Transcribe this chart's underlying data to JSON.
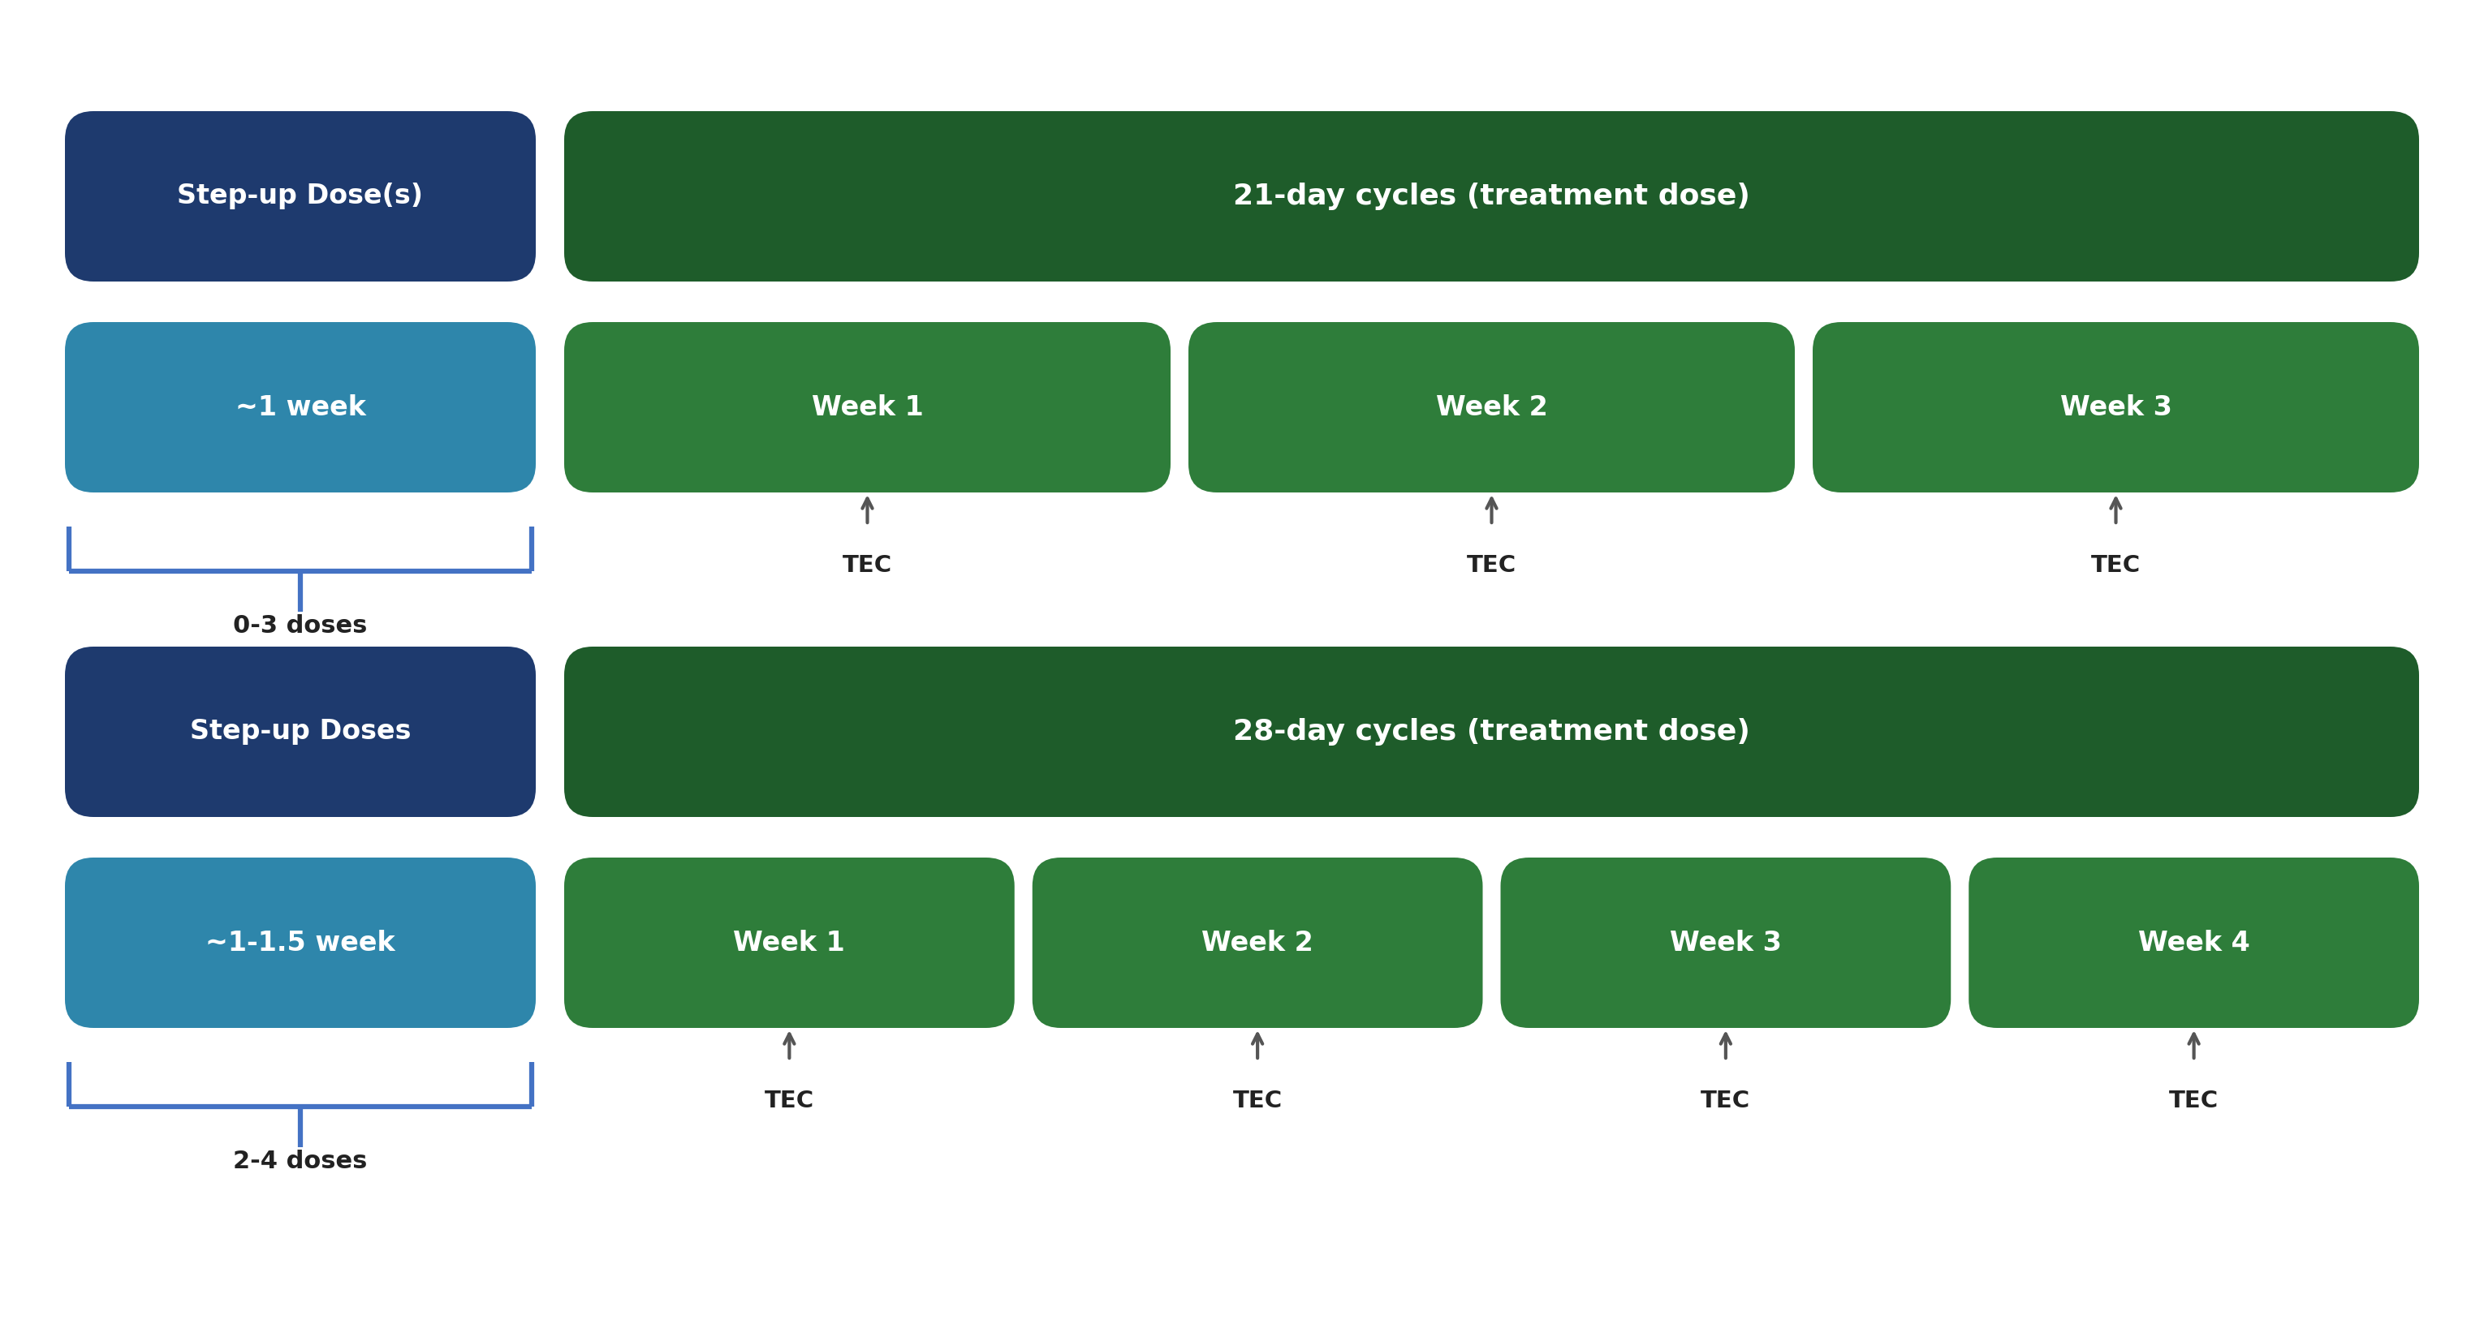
{
  "bg_color": "#ffffff",
  "dark_blue": "#1e3a6e",
  "teal_blue": "#2e86ab",
  "dark_green": "#1e5c2a",
  "mid_green": "#2e7d3a",
  "bracket_color": "#4472c4",
  "arrow_color": "#555555",
  "text_color_white": "#ffffff",
  "text_color_dark": "#222222",
  "row1": {
    "stepup_label": "Step-up Dose(s)",
    "cycle_label": "21-day cycles (treatment dose)",
    "week_label": "~1 week",
    "weeks": [
      "Week 1",
      "Week 2",
      "Week 3"
    ],
    "doses_label": "0-3 doses",
    "tec_count": 3
  },
  "row2": {
    "stepup_label": "Step-up Doses",
    "cycle_label": "28-day cycles (treatment dose)",
    "week_label": "~1-1.5 week",
    "weeks": [
      "Week 1",
      "Week 2",
      "Week 3",
      "Week 4"
    ],
    "doses_label": "2-4 doses",
    "tec_count": 4
  }
}
